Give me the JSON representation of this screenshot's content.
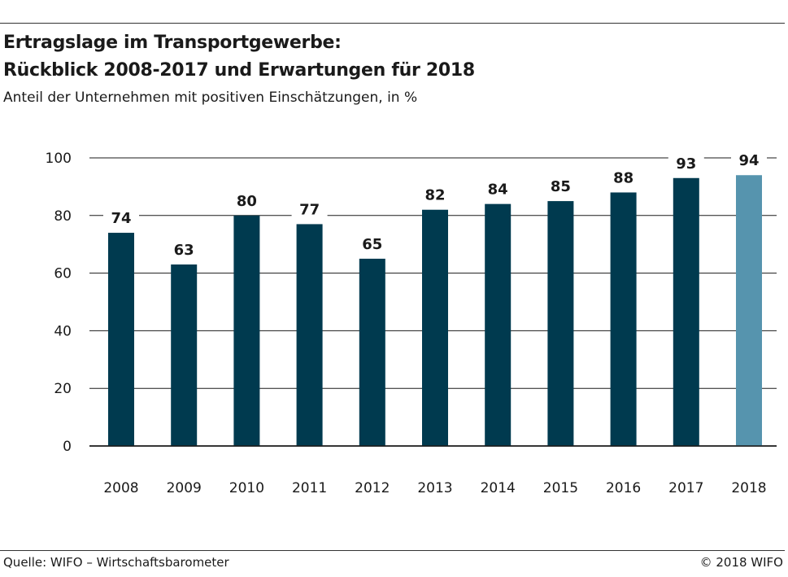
{
  "header": {
    "title_line1": "Ertragslage im Transportgewerbe:",
    "title_line2": "Rückblick 2008-2017 und Erwartungen für 2018",
    "subtitle": "Anteil der Unternehmen mit positiven Einschätzungen, in %"
  },
  "footer": {
    "source": "Quelle: WIFO – Wirtschaftsbarometer",
    "copyright": "© 2018 WIFO"
  },
  "chart_data": {
    "type": "bar",
    "categories": [
      "2008",
      "2009",
      "2010",
      "2011",
      "2012",
      "2013",
      "2014",
      "2015",
      "2016",
      "2017",
      "2018"
    ],
    "values": [
      74,
      63,
      80,
      77,
      65,
      82,
      84,
      85,
      88,
      93,
      94
    ],
    "data_labels": [
      "74",
      "63",
      "80",
      "77",
      "65",
      "82",
      "84",
      "85",
      "88",
      "93",
      "94"
    ],
    "ylim": [
      0,
      100
    ],
    "yticks": [
      0,
      20,
      40,
      60,
      80,
      100
    ],
    "grid": true,
    "colors": {
      "bar": "#003a4f",
      "bar_highlight": "#5694ae",
      "grid": "#1a1a1a"
    },
    "highlight_category": "2018"
  }
}
